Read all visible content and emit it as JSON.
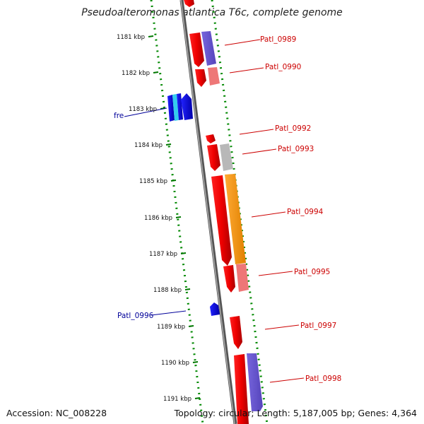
{
  "title": "Pseudoalteromonas atlantica T6c, complete genome",
  "footer": {
    "accession": "Accession: NC_008228",
    "topology": "Topology: circular; Length: 5,187,005 bp; Genes: 4,364"
  },
  "ticks": [
    "1181 kbp",
    "1182 kbp",
    "1183 kbp",
    "1184 kbp",
    "1185 kbp",
    "1186 kbp",
    "1187 kbp",
    "1188 kbp",
    "1189 kbp",
    "1190 kbp",
    "1191 kbp"
  ],
  "labels": [
    {
      "text": "Patl_0989",
      "color": "#cc0000"
    },
    {
      "text": "Patl_0990",
      "color": "#cc0000"
    },
    {
      "text": "fre",
      "color": "#000099"
    },
    {
      "text": "Patl_0992",
      "color": "#cc0000"
    },
    {
      "text": "Patl_0993",
      "color": "#cc0000"
    },
    {
      "text": "Patl_0994",
      "color": "#cc0000"
    },
    {
      "text": "Patl_0995",
      "color": "#cc0000"
    },
    {
      "text": "Patl_0996",
      "color": "#000099"
    },
    {
      "text": "Patl_0997",
      "color": "#cc0000"
    },
    {
      "text": "Patl_0998",
      "color": "#cc0000"
    }
  ],
  "colors": {
    "backbone": "#777777",
    "red_gene": "#ee0000",
    "orange_gene": "#ff9900",
    "purple_gene": "#6655cc",
    "salmon_gene": "#ee7777",
    "gray_gene": "#b8b8b8",
    "blue_gene": "#0000dd",
    "cyan_gene": "#33ccee",
    "tick_green": "#007700"
  }
}
